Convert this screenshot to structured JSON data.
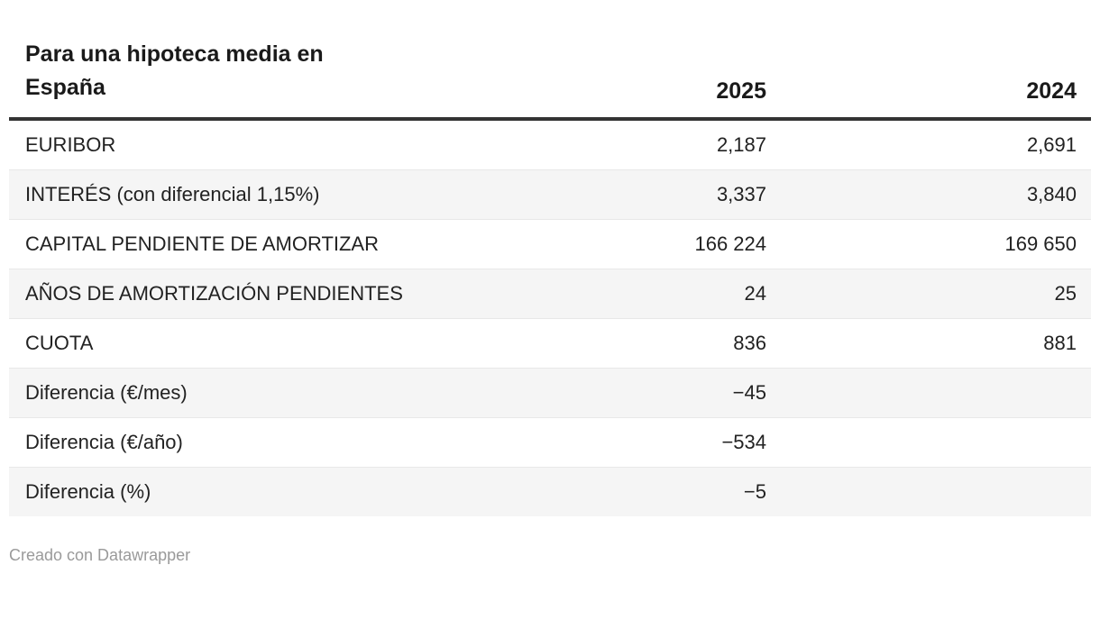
{
  "table": {
    "title": "Para una hipoteca media en España",
    "columns": [
      "2025",
      "2024"
    ],
    "rows": [
      {
        "label": "EURIBOR",
        "v2025": "2,187",
        "v2024": "2,691"
      },
      {
        "label": "INTERÉS (con diferencial 1,15%)",
        "v2025": "3,337",
        "v2024": "3,840"
      },
      {
        "label": "CAPITAL PENDIENTE DE AMORTIZAR",
        "v2025": "166 224",
        "v2024": "169 650"
      },
      {
        "label": "AÑOS DE AMORTIZACIÓN PENDIENTES",
        "v2025": "24",
        "v2024": "25"
      },
      {
        "label": "CUOTA",
        "v2025": "836",
        "v2024": "881"
      },
      {
        "label": "Diferencia (€/mes)",
        "v2025": "−45",
        "v2024": ""
      },
      {
        "label": "Diferencia (€/año)",
        "v2025": "−534",
        "v2024": ""
      },
      {
        "label": "Diferencia (%)",
        "v2025": "−5",
        "v2024": ""
      }
    ],
    "footer": "Creado con Datawrapper"
  },
  "colors": {
    "title_text": "#1a1a1a",
    "body_text": "#222222",
    "header_rule": "#333333",
    "row_stripe": "#f5f5f5",
    "row_border": "#e8e8e8",
    "footer_text": "#9a9a9a",
    "background": "#ffffff"
  },
  "chart_data": {
    "type": "table",
    "title": "Para una hipoteca media en España",
    "columns": [
      "",
      "2025",
      "2024"
    ],
    "rows": [
      [
        "EURIBOR",
        "2,187",
        "2,691"
      ],
      [
        "INTERÉS (con diferencial 1,15%)",
        "3,337",
        "3,840"
      ],
      [
        "CAPITAL PENDIENTE DE AMORTIZAR",
        "166 224",
        "169 650"
      ],
      [
        "AÑOS DE AMORTIZACIÓN PENDIENTES",
        "24",
        "25"
      ],
      [
        "CUOTA",
        "836",
        "881"
      ],
      [
        "Diferencia (€/mes)",
        "−45",
        ""
      ],
      [
        "Diferencia (€/año)",
        "−534",
        ""
      ],
      [
        "Diferencia (%)",
        "−5",
        ""
      ]
    ],
    "layout_hints": {
      "value_alignment": "right",
      "striped_rows": true,
      "thick_rule_under_header": true
    },
    "footer": "Creado con Datawrapper"
  }
}
